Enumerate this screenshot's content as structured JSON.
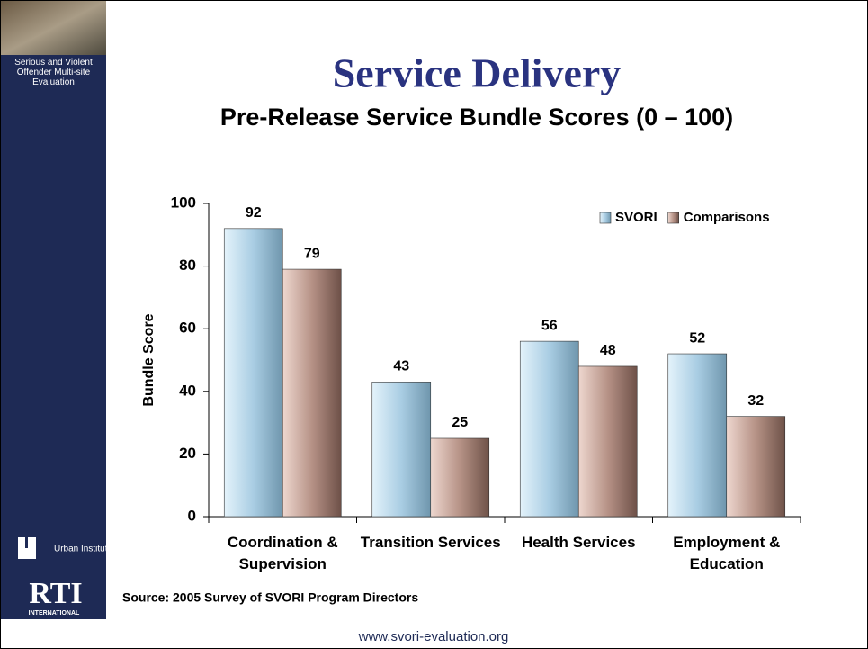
{
  "sidebar": {
    "caption": "Serious and Violent Offender Multi-site Evaluation",
    "urban": "Urban Institute",
    "rti": "RTI",
    "rti_sub": "INTERNATIONAL"
  },
  "chart_data": {
    "type": "bar",
    "title": "Service Delivery",
    "subtitle": "Pre-Release Service Bundle Scores (0 – 100)",
    "y_label": "Bundle Score",
    "categories": [
      "Coordination & Supervision",
      "Transition Services",
      "Health Services",
      "Employment & Education"
    ],
    "series": [
      {
        "name": "SVORI",
        "color": "#a9cde3",
        "values": [
          92,
          43,
          56,
          52
        ]
      },
      {
        "name": "Comparisons",
        "color": "#b69286",
        "values": [
          79,
          25,
          48,
          32
        ]
      }
    ],
    "ylim": [
      0,
      100
    ],
    "yticks": [
      0,
      20,
      40,
      60,
      80,
      100
    ],
    "grid": false,
    "legend": "upper right"
  },
  "source": "Source: 2005 Survey of SVORI Program Directors",
  "footer_url": "www.svori-evaluation.org"
}
